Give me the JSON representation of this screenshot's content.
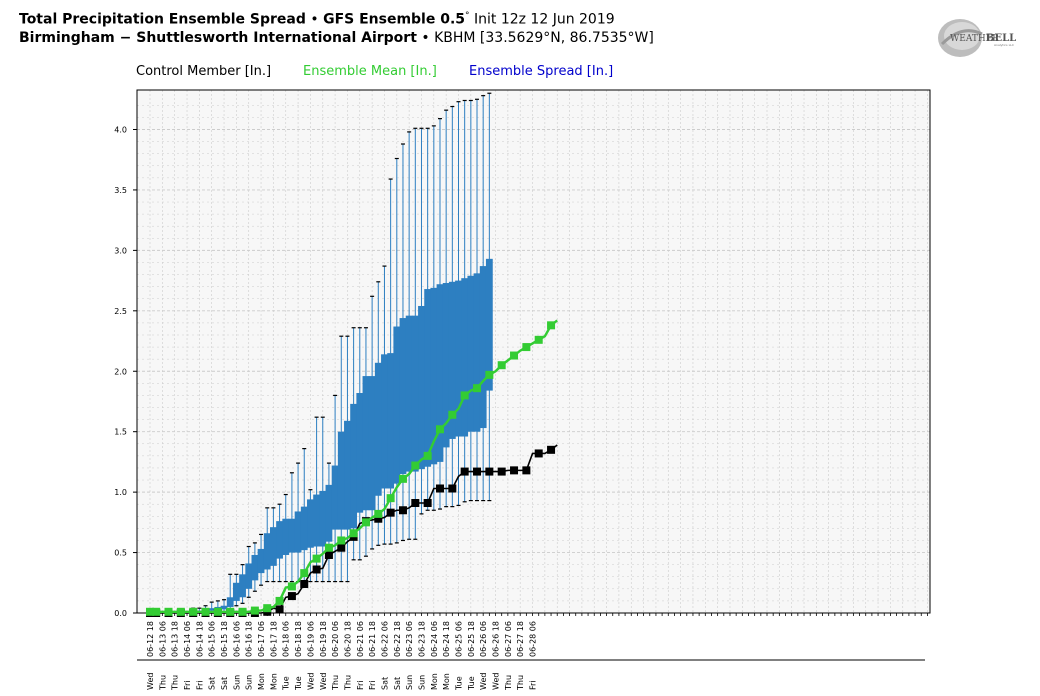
{
  "header": {
    "title_bold": "Total Precipitation Ensemble Spread",
    "title_sep": " • ",
    "model_bold": "GFS Ensemble 0.5",
    "degree": "°",
    "init": "Init 12z 12 Jun 2019",
    "location_bold": "Birmingham − Shuttlesworth International Airport",
    "location_sep": " • ",
    "station": "KBHM [33.5629°N, 86.7535°W]"
  },
  "legend": {
    "control": "Control Member [In.]",
    "mean": "Ensemble Mean [In.]",
    "spread": "Ensemble Spread [In.]"
  },
  "logo": {
    "text_a": "Weather",
    "text_b": "BELL",
    "sub": "Analytics LLC"
  },
  "colors": {
    "control": "#000000",
    "mean": "#33cc33",
    "spread_legend": "#0000cc",
    "box_fill": "#2d7fc1",
    "whisker": "#2d7fc1",
    "grid": "#cccccc"
  },
  "chart_data": {
    "type": "box",
    "title": "Total Precipitation Ensemble Spread",
    "y_unit": "In.",
    "ylim": [
      0,
      4.3
    ],
    "yticks": [
      "0.0",
      "0.5",
      "1.0",
      "1.5",
      "2.0",
      "2.5",
      "3.0",
      "3.5",
      "4.0"
    ],
    "grid": true,
    "legend_placement": "top-left",
    "x_labels": [
      "06-12 18",
      "06-13 06",
      "06-13 18",
      "06-14 06",
      "06-14 18",
      "06-15 06",
      "06-15 18",
      "06-16 06",
      "06-16 18",
      "06-17 06",
      "06-17 18",
      "06-18 06",
      "06-18 18",
      "06-19 06",
      "06-19 18",
      "06-20 06",
      "06-20 18",
      "06-21 06",
      "06-21 18",
      "06-22 06",
      "06-22 18",
      "06-23 06",
      "06-23 18",
      "06-24 06",
      "06-24 18",
      "06-25 06",
      "06-25 18",
      "06-26 06",
      "06-26 18",
      "06-27 06",
      "06-27 18",
      "06-28 06"
    ],
    "day_labels": [
      "Wed",
      "Thu",
      "Thu",
      "Fri",
      "Fri",
      "Sat",
      "Sat",
      "Sun",
      "Sun",
      "Mon",
      "Mon",
      "Tue",
      "Tue",
      "Wed",
      "Wed",
      "Thu",
      "Thu",
      "Fri",
      "Fri",
      "Sat",
      "Sat",
      "Sun",
      "Sun",
      "Mon",
      "Mon",
      "Tue",
      "Tue",
      "Wed",
      "Wed",
      "Thu",
      "Thu",
      "Fri"
    ],
    "control": [
      0,
      0,
      0,
      0,
      0,
      0,
      0,
      0,
      0,
      0,
      0,
      0,
      0,
      0,
      0,
      0,
      0,
      0,
      0,
      0.01,
      0.04,
      0.03,
      0.13,
      0.14,
      0.16,
      0.24,
      0.33,
      0.36,
      0.37,
      0.48,
      0.51,
      0.54,
      0.59,
      0.63,
      0.74,
      0.76,
      0.77,
      0.78,
      0.79,
      0.83,
      0.85,
      0.85,
      0.87,
      0.91,
      0.91,
      0.91,
      1.03,
      1.03,
      1.03,
      1.03,
      1.13,
      1.17,
      1.17,
      1.17,
      1.17,
      1.17,
      1.17,
      1.17,
      1.18,
      1.18,
      1.18,
      1.18,
      1.32,
      1.32,
      1.32,
      1.35,
      1.39
    ],
    "mean": [
      0.01,
      0.01,
      0.01,
      0.01,
      0.01,
      0.01,
      0.01,
      0.01,
      0.01,
      0.01,
      0.01,
      0.01,
      0.01,
      0.01,
      0.01,
      0.01,
      0.01,
      0.02,
      0.02,
      0.04,
      0.05,
      0.1,
      0.21,
      0.22,
      0.26,
      0.33,
      0.42,
      0.45,
      0.49,
      0.54,
      0.56,
      0.6,
      0.62,
      0.66,
      0.7,
      0.75,
      0.79,
      0.82,
      0.86,
      0.95,
      1.04,
      1.11,
      1.15,
      1.22,
      1.27,
      1.3,
      1.42,
      1.52,
      1.57,
      1.64,
      1.69,
      1.8,
      1.84,
      1.86,
      1.92,
      1.97,
      2.0,
      2.05,
      2.09,
      2.13,
      2.17,
      2.2,
      2.23,
      2.26,
      2.29,
      2.38,
      2.42
    ],
    "boxes": [
      {
        "x": 7,
        "lo": 0.01,
        "q1": 0.01,
        "q3": 0.02,
        "hi": 0.04
      },
      {
        "x": 8,
        "lo": 0.01,
        "q1": 0.01,
        "q3": 0.02,
        "hi": 0.04
      },
      {
        "x": 9,
        "lo": 0.01,
        "q1": 0.01,
        "q3": 0.03,
        "hi": 0.06
      },
      {
        "x": 10,
        "lo": 0.01,
        "q1": 0.02,
        "q3": 0.04,
        "hi": 0.09
      },
      {
        "x": 11,
        "lo": 0.01,
        "q1": 0.02,
        "q3": 0.05,
        "hi": 0.1
      },
      {
        "x": 12,
        "lo": 0.01,
        "q1": 0.03,
        "q3": 0.06,
        "hi": 0.11
      },
      {
        "x": 13,
        "lo": 0.02,
        "q1": 0.05,
        "q3": 0.13,
        "hi": 0.32
      },
      {
        "x": 14,
        "lo": 0.06,
        "q1": 0.1,
        "q3": 0.25,
        "hi": 0.32
      },
      {
        "x": 15,
        "lo": 0.08,
        "q1": 0.13,
        "q3": 0.32,
        "hi": 0.4
      },
      {
        "x": 16,
        "lo": 0.13,
        "q1": 0.2,
        "q3": 0.41,
        "hi": 0.55
      },
      {
        "x": 17,
        "lo": 0.18,
        "q1": 0.27,
        "q3": 0.48,
        "hi": 0.58
      },
      {
        "x": 18,
        "lo": 0.23,
        "q1": 0.33,
        "q3": 0.53,
        "hi": 0.65
      },
      {
        "x": 19,
        "lo": 0.26,
        "q1": 0.36,
        "q3": 0.66,
        "hi": 0.87
      },
      {
        "x": 20,
        "lo": 0.26,
        "q1": 0.39,
        "q3": 0.71,
        "hi": 0.87
      },
      {
        "x": 21,
        "lo": 0.26,
        "q1": 0.45,
        "q3": 0.76,
        "hi": 0.9
      },
      {
        "x": 22,
        "lo": 0.26,
        "q1": 0.48,
        "q3": 0.78,
        "hi": 0.98
      },
      {
        "x": 23,
        "lo": 0.26,
        "q1": 0.5,
        "q3": 0.78,
        "hi": 1.16
      },
      {
        "x": 24,
        "lo": 0.26,
        "q1": 0.5,
        "q3": 0.84,
        "hi": 1.24
      },
      {
        "x": 25,
        "lo": 0.26,
        "q1": 0.52,
        "q3": 0.88,
        "hi": 1.36
      },
      {
        "x": 26,
        "lo": 0.26,
        "q1": 0.54,
        "q3": 0.94,
        "hi": 1.02
      },
      {
        "x": 27,
        "lo": 0.26,
        "q1": 0.55,
        "q3": 0.98,
        "hi": 1.62
      },
      {
        "x": 28,
        "lo": 0.26,
        "q1": 0.55,
        "q3": 1.01,
        "hi": 1.62
      },
      {
        "x": 29,
        "lo": 0.26,
        "q1": 0.59,
        "q3": 1.06,
        "hi": 1.24
      },
      {
        "x": 30,
        "lo": 0.26,
        "q1": 0.69,
        "q3": 1.22,
        "hi": 1.8
      },
      {
        "x": 31,
        "lo": 0.26,
        "q1": 0.69,
        "q3": 1.5,
        "hi": 2.29
      },
      {
        "x": 32,
        "lo": 0.26,
        "q1": 0.69,
        "q3": 1.59,
        "hi": 2.29
      },
      {
        "x": 33,
        "lo": 0.44,
        "q1": 0.7,
        "q3": 1.73,
        "hi": 2.36
      },
      {
        "x": 34,
        "lo": 0.44,
        "q1": 0.83,
        "q3": 1.82,
        "hi": 2.36
      },
      {
        "x": 35,
        "lo": 0.47,
        "q1": 0.85,
        "q3": 1.96,
        "hi": 2.36
      },
      {
        "x": 36,
        "lo": 0.53,
        "q1": 0.85,
        "q3": 1.96,
        "hi": 2.62
      },
      {
        "x": 37,
        "lo": 0.56,
        "q1": 0.97,
        "q3": 2.07,
        "hi": 2.74
      },
      {
        "x": 38,
        "lo": 0.57,
        "q1": 1.03,
        "q3": 2.14,
        "hi": 2.87
      },
      {
        "x": 39,
        "lo": 0.57,
        "q1": 1.03,
        "q3": 2.15,
        "hi": 3.59
      },
      {
        "x": 40,
        "lo": 0.58,
        "q1": 1.07,
        "q3": 2.37,
        "hi": 3.76
      },
      {
        "x": 41,
        "lo": 0.6,
        "q1": 1.15,
        "q3": 2.44,
        "hi": 3.88
      },
      {
        "x": 42,
        "lo": 0.61,
        "q1": 1.17,
        "q3": 2.46,
        "hi": 3.98
      },
      {
        "x": 43,
        "lo": 0.61,
        "q1": 1.17,
        "q3": 2.46,
        "hi": 4.01
      },
      {
        "x": 44,
        "lo": 0.82,
        "q1": 1.19,
        "q3": 2.54,
        "hi": 4.01
      },
      {
        "x": 45,
        "lo": 0.85,
        "q1": 1.21,
        "q3": 2.68,
        "hi": 4.01
      },
      {
        "x": 46,
        "lo": 0.85,
        "q1": 1.23,
        "q3": 2.69,
        "hi": 4.03
      },
      {
        "x": 47,
        "lo": 0.86,
        "q1": 1.25,
        "q3": 2.72,
        "hi": 4.09
      },
      {
        "x": 48,
        "lo": 0.88,
        "q1": 1.37,
        "q3": 2.73,
        "hi": 4.16
      },
      {
        "x": 49,
        "lo": 0.88,
        "q1": 1.44,
        "q3": 2.74,
        "hi": 4.19
      },
      {
        "x": 50,
        "lo": 0.89,
        "q1": 1.46,
        "q3": 2.75,
        "hi": 4.23
      },
      {
        "x": 51,
        "lo": 0.92,
        "q1": 1.46,
        "q3": 2.77,
        "hi": 4.24
      },
      {
        "x": 52,
        "lo": 0.93,
        "q1": 1.5,
        "q3": 2.79,
        "hi": 4.24
      },
      {
        "x": 53,
        "lo": 0.93,
        "q1": 1.5,
        "q3": 2.81,
        "hi": 4.25
      },
      {
        "x": 54,
        "lo": 0.93,
        "q1": 1.53,
        "q3": 2.87,
        "hi": 4.28
      },
      {
        "x": 55,
        "lo": 0.93,
        "q1": 1.84,
        "q3": 2.93,
        "hi": 4.3
      }
    ]
  }
}
